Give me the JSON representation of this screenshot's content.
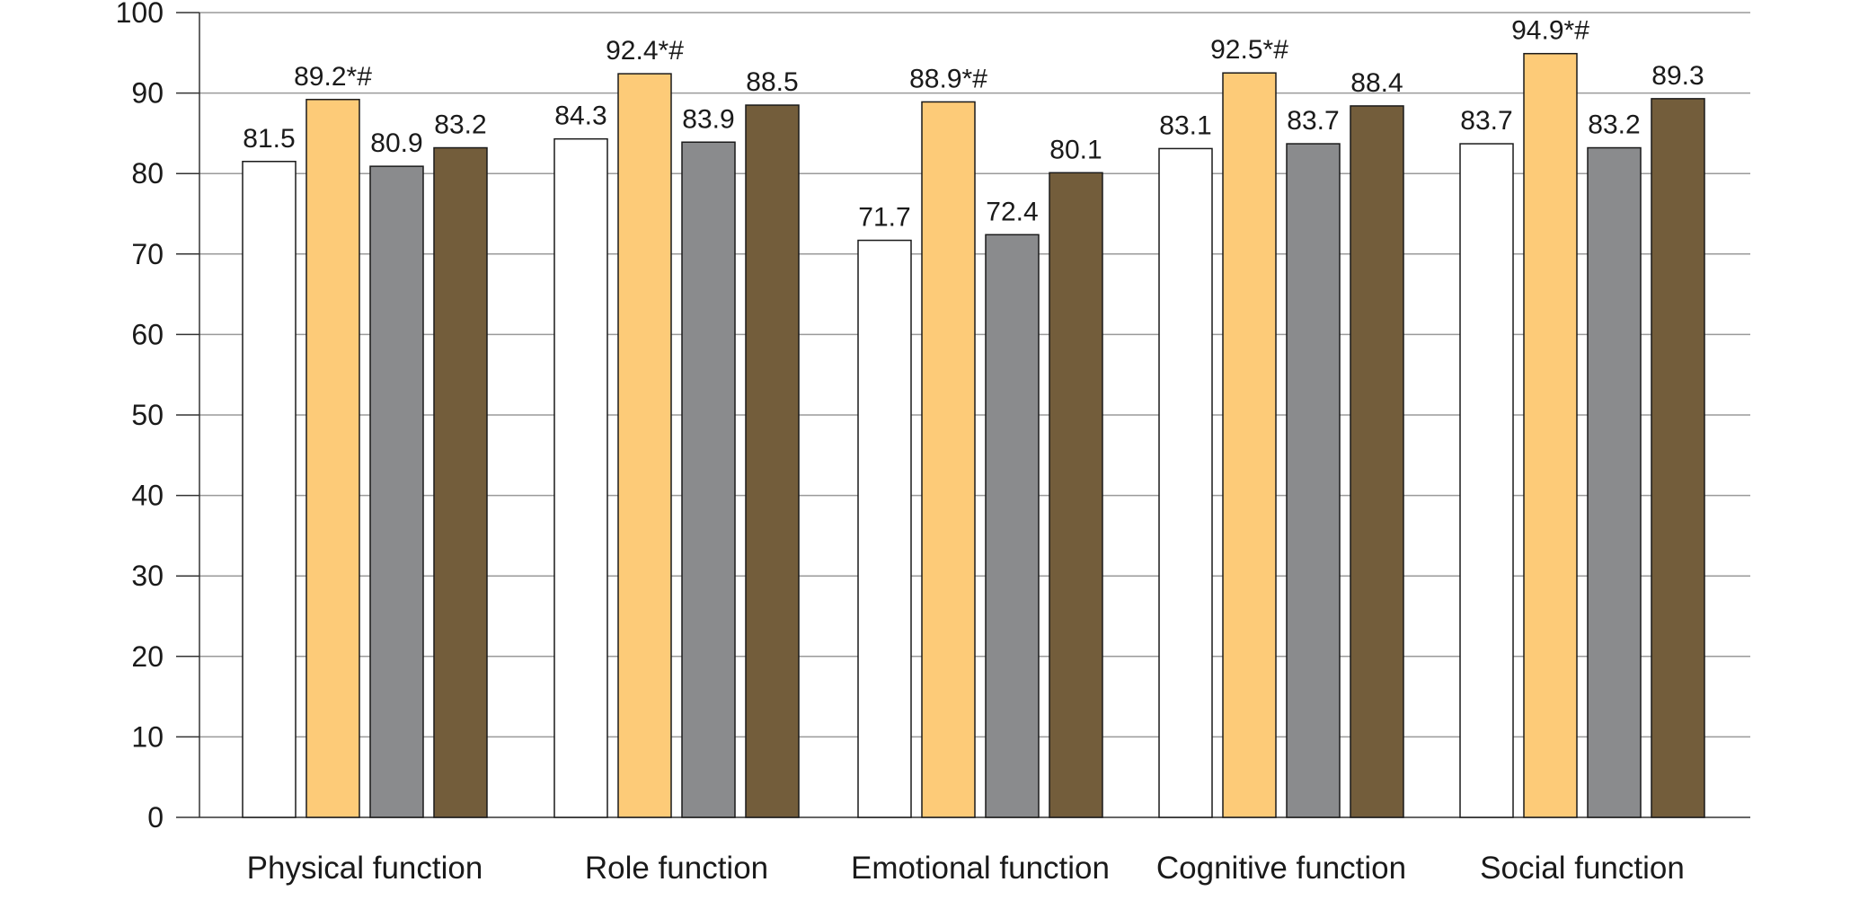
{
  "chart_data": {
    "type": "bar",
    "title": "",
    "xlabel": "",
    "ylabel": "",
    "ylim": [
      0,
      100
    ],
    "yticks": [
      0,
      10,
      20,
      30,
      40,
      50,
      60,
      70,
      80,
      90,
      100
    ],
    "grid": true,
    "legend": "none",
    "categories": [
      "Physical function",
      "Role function",
      "Emotional function",
      "Cognitive function",
      "Social function"
    ],
    "series": [
      {
        "color": "#ffffff",
        "values": [
          81.5,
          84.3,
          71.7,
          83.1,
          83.7
        ],
        "labels": [
          "81.5",
          "84.3",
          "71.7",
          "83.1",
          "83.7"
        ]
      },
      {
        "color": "#fdcb78",
        "values": [
          89.2,
          92.4,
          88.9,
          92.5,
          94.9
        ],
        "labels": [
          "89.2*#",
          "92.4*#",
          "88.9*#",
          "92.5*#",
          "94.9*#"
        ]
      },
      {
        "color": "#8a8b8d",
        "values": [
          80.9,
          83.9,
          72.4,
          83.7,
          83.2
        ],
        "labels": [
          "80.9",
          "83.9",
          "72.4",
          "83.7",
          "83.2"
        ]
      },
      {
        "color": "#735d3b",
        "values": [
          83.2,
          88.5,
          80.1,
          88.4,
          89.3
        ],
        "labels": [
          "83.2",
          "88.5",
          "80.1",
          "88.4",
          "89.3"
        ]
      }
    ]
  }
}
